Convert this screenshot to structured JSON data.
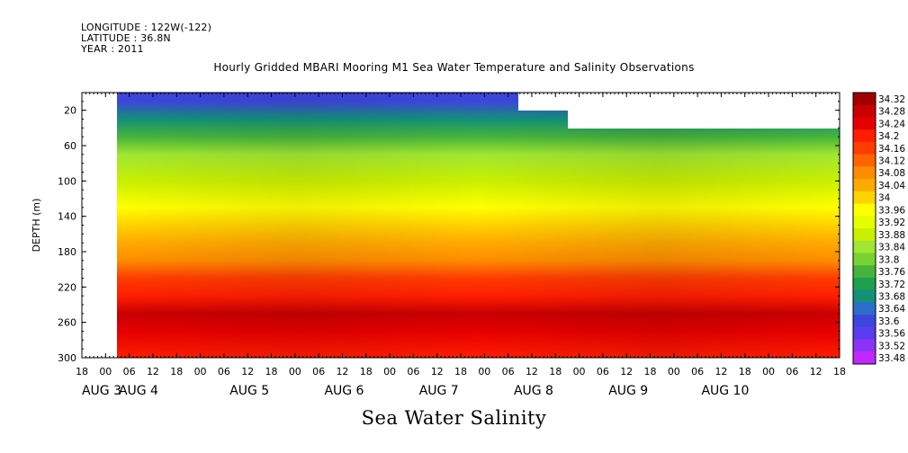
{
  "meta": {
    "longitude": "LONGITUDE : 122W(-122)",
    "latitude": "LATITUDE : 36.8N",
    "year": "YEAR : 2011"
  },
  "chart_data": {
    "type": "heatmap",
    "title": "Hourly Gridded MBARI Mooring M1 Sea Water Temperature and Salinity Observations",
    "footer_title": "Sea Water Salinity",
    "ylabel": "DEPTH (m)",
    "ylim": [
      0,
      300
    ],
    "y_inverted": true,
    "y_ticks": [
      20,
      60,
      100,
      140,
      180,
      220,
      260,
      300
    ],
    "x_hour_ticks": [
      "18",
      "00",
      "06",
      "12",
      "18",
      "00",
      "06",
      "12",
      "18",
      "00",
      "06",
      "12",
      "18",
      "00",
      "06",
      "12",
      "18",
      "00",
      "06",
      "12",
      "18",
      "00",
      "06",
      "12",
      "18",
      "00",
      "06",
      "12",
      "18",
      "00",
      "06",
      "12",
      "18"
    ],
    "x_date_labels": [
      "AUG 3",
      "AUG 4",
      "AUG 5",
      "AUG 6",
      "AUG 7",
      "AUG 8",
      "AUG 9",
      "AUG 10"
    ],
    "colorbar_levels": [
      34.32,
      34.28,
      34.24,
      34.2,
      34.16,
      34.12,
      34.08,
      34.04,
      34,
      33.96,
      33.92,
      33.88,
      33.84,
      33.8,
      33.76,
      33.72,
      33.68,
      33.64,
      33.6,
      33.56,
      33.52,
      33.48
    ],
    "colorbar_colors": [
      "#a00000",
      "#c80000",
      "#e60000",
      "#ff1e00",
      "#ff3c00",
      "#ff6400",
      "#ff8c00",
      "#ffaa00",
      "#ffd200",
      "#ffff00",
      "#e6ff00",
      "#c8f000",
      "#a0e632",
      "#78d232",
      "#46b43c",
      "#1ea050",
      "#139178",
      "#2d6ec8",
      "#3c46dc",
      "#5a3cf0",
      "#8c32f5",
      "#c028ff"
    ],
    "depth_profile": [
      {
        "depth": 10,
        "salinity": 33.6
      },
      {
        "depth": 30,
        "salinity": 33.68
      },
      {
        "depth": 50,
        "salinity": 33.76
      },
      {
        "depth": 70,
        "salinity": 33.84
      },
      {
        "depth": 100,
        "salinity": 33.9
      },
      {
        "depth": 130,
        "salinity": 33.98
      },
      {
        "depth": 150,
        "salinity": 34.02
      },
      {
        "depth": 170,
        "salinity": 34.06
      },
      {
        "depth": 190,
        "salinity": 34.1
      },
      {
        "depth": 210,
        "salinity": 34.16
      },
      {
        "depth": 230,
        "salinity": 34.2
      },
      {
        "depth": 250,
        "salinity": 34.28
      },
      {
        "depth": 270,
        "salinity": 34.26
      },
      {
        "depth": 300,
        "salinity": 34.22
      }
    ]
  }
}
